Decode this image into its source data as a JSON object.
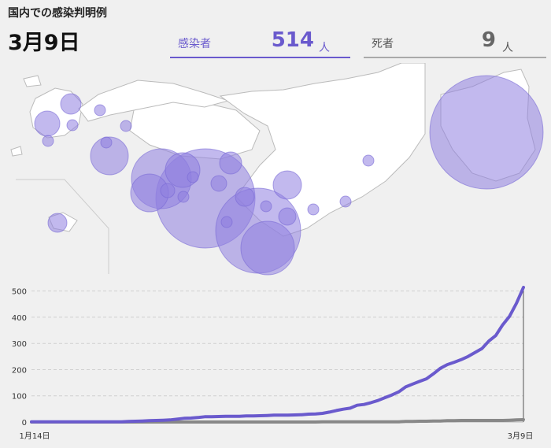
{
  "header": {
    "title": "国内での感染判明例",
    "date": "3月9日"
  },
  "stats": {
    "infected": {
      "label": "感染者",
      "value": "514",
      "unit": "人"
    },
    "deaths": {
      "label": "死者",
      "value": "9",
      "unit": "人"
    }
  },
  "colors": {
    "accent": "#6a5acd",
    "bubble": "#8f7fe0",
    "deaths_line": "#888888",
    "land": "#ffffff",
    "border": "#bbbbbb"
  },
  "map_bubbles": [
    {
      "region": "hokkaido",
      "count": 105
    },
    {
      "region": "aichi",
      "count": 87
    },
    {
      "region": "osaka",
      "count": 55
    },
    {
      "region": "kanagawa",
      "count": 40
    },
    {
      "region": "tokyo",
      "count": 75
    },
    {
      "region": "chiba",
      "count": 23
    },
    {
      "region": "saitama",
      "count": 12
    },
    {
      "region": "wakayama",
      "count": 15
    },
    {
      "region": "hyogo",
      "count": 32
    },
    {
      "region": "niigata",
      "count": 13
    },
    {
      "region": "gifu",
      "count": 2
    },
    {
      "region": "kyoto",
      "count": 10
    },
    {
      "region": "nara",
      "count": 6
    },
    {
      "region": "kochi",
      "count": 11
    },
    {
      "region": "fukuoka",
      "count": 3
    },
    {
      "region": "kumamoto",
      "count": 5
    },
    {
      "region": "okinawa",
      "count": 3
    },
    {
      "region": "ehime",
      "count": 1
    },
    {
      "region": "tokushima",
      "count": 1
    },
    {
      "region": "mie",
      "count": 1
    },
    {
      "region": "shizuoka",
      "count": 2
    },
    {
      "region": "tochigi",
      "count": 1
    },
    {
      "region": "ishikawa",
      "count": 4
    },
    {
      "region": "nagano",
      "count": 3
    },
    {
      "region": "hiroshima",
      "count": 2
    },
    {
      "region": "oita",
      "count": 5
    }
  ],
  "chart_data": {
    "type": "line",
    "x_labels": [
      "1月14日",
      "3月9日"
    ],
    "ylim": [
      0,
      520
    ],
    "yticks": [
      0,
      100,
      200,
      300,
      400,
      500
    ],
    "grid": true,
    "series": [
      {
        "values": [
          1,
          1,
          1,
          1,
          1,
          1,
          1,
          1,
          1,
          1,
          1,
          1,
          1,
          1,
          2,
          3,
          4,
          5,
          6,
          7,
          8,
          11,
          14,
          15,
          17,
          20,
          20,
          21,
          22,
          22,
          22,
          23,
          23,
          24,
          25,
          26,
          26,
          26,
          27,
          28,
          30,
          31,
          33,
          38,
          44,
          49,
          53,
          64,
          67,
          74,
          82,
          93,
          103,
          115,
          134,
          145,
          155,
          165,
          184,
          205,
          219,
          228,
          238,
          250,
          265,
          280,
          309,
          330,
          371,
          404,
          454,
          514
        ]
      },
      {
        "values": [
          0,
          0,
          0,
          0,
          0,
          0,
          0,
          0,
          0,
          0,
          0,
          0,
          0,
          0,
          0,
          0,
          0,
          0,
          0,
          0,
          0,
          0,
          0,
          0,
          0,
          0,
          0,
          0,
          0,
          0,
          0,
          0,
          0,
          0,
          0,
          0,
          0,
          0,
          0,
          0,
          0,
          0,
          1,
          1,
          1,
          1,
          1,
          1,
          1,
          1,
          1,
          1,
          1,
          1,
          2,
          2,
          3,
          3,
          4,
          4,
          5,
          5,
          6,
          6,
          6,
          6,
          6,
          6,
          6,
          7,
          8,
          9
        ]
      }
    ]
  }
}
